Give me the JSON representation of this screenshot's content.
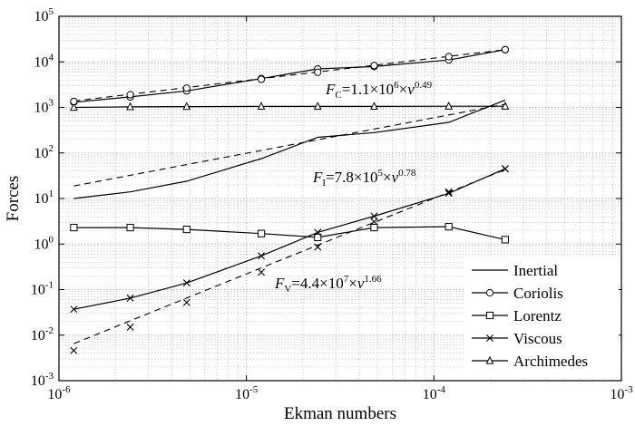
{
  "chart_data": {
    "type": "line",
    "xscale": "log",
    "yscale": "log",
    "xlim": [
      1e-06,
      0.001
    ],
    "ylim": [
      0.001,
      100000
    ],
    "grid": true,
    "xlabel": "Ekman numbers",
    "ylabel": "Forces",
    "legend_position": "bottom-right",
    "x_ticks": [
      {
        "value": 1e-06,
        "base": "10",
        "exp": "-6"
      },
      {
        "value": 1e-05,
        "base": "10",
        "exp": "-5"
      },
      {
        "value": 0.0001,
        "base": "10",
        "exp": "-4"
      },
      {
        "value": 0.001,
        "base": "10",
        "exp": "-3"
      }
    ],
    "y_ticks": [
      {
        "value": 0.001,
        "base": "10",
        "exp": "-3"
      },
      {
        "value": 0.01,
        "base": "10",
        "exp": "-2"
      },
      {
        "value": 0.1,
        "base": "10",
        "exp": "-1"
      },
      {
        "value": 1,
        "base": "10",
        "exp": "0"
      },
      {
        "value": 10,
        "base": "10",
        "exp": "1"
      },
      {
        "value": 100,
        "base": "10",
        "exp": "2"
      },
      {
        "value": 1000,
        "base": "10",
        "exp": "3"
      },
      {
        "value": 10000,
        "base": "10",
        "exp": "4"
      },
      {
        "value": 100000,
        "base": "10",
        "exp": "5"
      }
    ],
    "series": [
      {
        "name": "Inertial",
        "marker": "none",
        "x": [
          1.2e-06,
          2.4e-06,
          4.8e-06,
          1.2e-05,
          2.4e-05,
          4.8e-05,
          0.00012,
          0.00024
        ],
        "y": [
          10,
          14,
          24,
          75,
          220,
          280,
          470,
          1450
        ]
      },
      {
        "name": "Coriolis",
        "marker": "circle",
        "x": [
          1.2e-06,
          2.4e-06,
          4.8e-06,
          1.2e-05,
          2.4e-05,
          4.8e-05,
          0.00012,
          0.00024
        ],
        "y": [
          1300,
          1700,
          2300,
          4300,
          7000,
          7900,
          11000,
          18500
        ]
      },
      {
        "name": "Lorentz",
        "marker": "square",
        "x": [
          1.2e-06,
          2.4e-06,
          4.8e-06,
          1.2e-05,
          2.4e-05,
          4.8e-05,
          0.00012,
          0.00024
        ],
        "y": [
          2.3,
          2.3,
          2.1,
          1.7,
          1.4,
          2.3,
          2.4,
          1.25
        ]
      },
      {
        "name": "Viscous",
        "marker": "x",
        "x": [
          1.2e-06,
          2.4e-06,
          4.8e-06,
          1.2e-05,
          2.4e-05,
          4.8e-05,
          0.00012,
          0.00024
        ],
        "y": [
          0.037,
          0.065,
          0.14,
          0.55,
          1.8,
          4.1,
          13,
          45
        ]
      },
      {
        "name": "Archimedes",
        "marker": "triangle",
        "x": [
          1.2e-06,
          2.4e-06,
          4.8e-06,
          1.2e-05,
          2.4e-05,
          4.8e-05,
          0.00012,
          0.00024
        ],
        "y": [
          1000,
          1030,
          1040,
          1050,
          1050,
          1050,
          1060,
          1060
        ]
      }
    ],
    "fits": [
      {
        "label": "F_C",
        "coef": 1100000.0,
        "power": 0.49,
        "x": [
          1.2e-06,
          2.4e-06,
          4.8e-06,
          1.2e-05,
          2.4e-05,
          4.8e-05,
          0.00012,
          0.00024
        ],
        "marker": "circle",
        "marker_y": [
          1350,
          1900,
          2650,
          4150,
          5900,
          8300,
          13000,
          18500
        ],
        "annotation": {
          "italic": "F",
          "sub": "C",
          "rest": "=1.1×10",
          "exp": "6",
          "tail": "×",
          "var": "ν",
          "vexp": "0.49"
        }
      },
      {
        "label": "F_I",
        "coef": 780000.0,
        "power": 0.78,
        "x": [
          1.2e-06,
          0.00024
        ],
        "marker": "none",
        "annotation": {
          "italic": "F",
          "sub": "I",
          "rest": "=7.8×10",
          "exp": "5",
          "tail": "×",
          "var": "ν",
          "vexp": "0.78"
        }
      },
      {
        "label": "F_V",
        "coef": 44000000.0,
        "power": 1.66,
        "x": [
          1.2e-06,
          2.4e-06,
          4.8e-06,
          1.2e-05,
          2.4e-05,
          4.8e-05,
          0.00012,
          0.00024
        ],
        "marker": "x",
        "marker_y": [
          0.0046,
          0.015,
          0.052,
          0.24,
          0.86,
          3.1,
          14,
          45
        ],
        "annotation": {
          "italic": "F",
          "sub": "V",
          "rest": "=4.4×10",
          "exp": "7",
          "tail": "×",
          "var": "ν",
          "vexp": "1.66"
        }
      }
    ]
  }
}
